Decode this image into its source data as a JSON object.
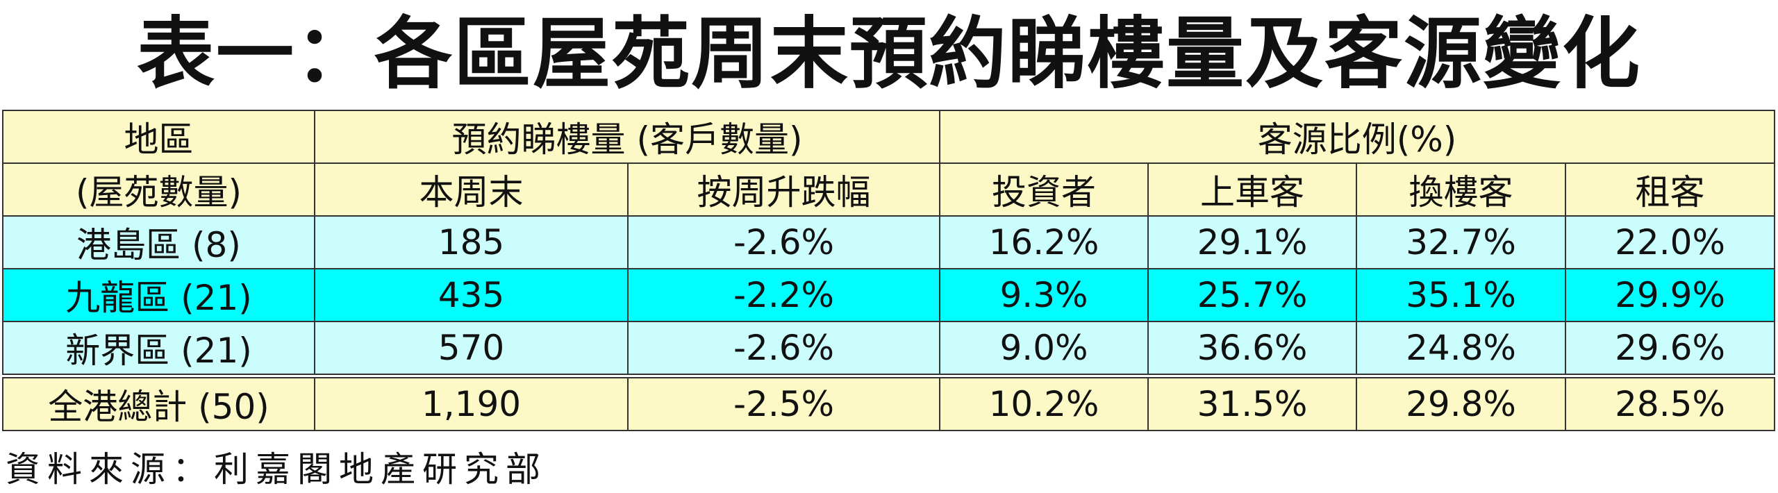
{
  "title": "表一：各區屋苑周末預約睇樓量及客源變化",
  "table": {
    "header_top": [
      "地區",
      "預約睇樓量 (客戶數量)",
      "客源比例(%)"
    ],
    "header_sub": [
      "(屋苑數量)",
      "本周末",
      "按周升跌幅",
      "投資者",
      "上車客",
      "換樓客",
      "租客"
    ],
    "rows": [
      [
        "港島區 (8)",
        "185",
        "-2.6%",
        "16.2%",
        "29.1%",
        "32.7%",
        "22.0%"
      ],
      [
        "九龍區 (21)",
        "435",
        "-2.2%",
        "9.3%",
        "25.7%",
        "35.1%",
        "29.9%"
      ],
      [
        "新界區 (21)",
        "570",
        "-2.6%",
        "9.0%",
        "36.6%",
        "24.8%",
        "29.6%"
      ],
      [
        "全港總計 (50)",
        "1,190",
        "-2.5%",
        "10.2%",
        "31.5%",
        "29.8%",
        "28.5%"
      ]
    ]
  },
  "source": "資料來源：利嘉閣地產研究部"
}
